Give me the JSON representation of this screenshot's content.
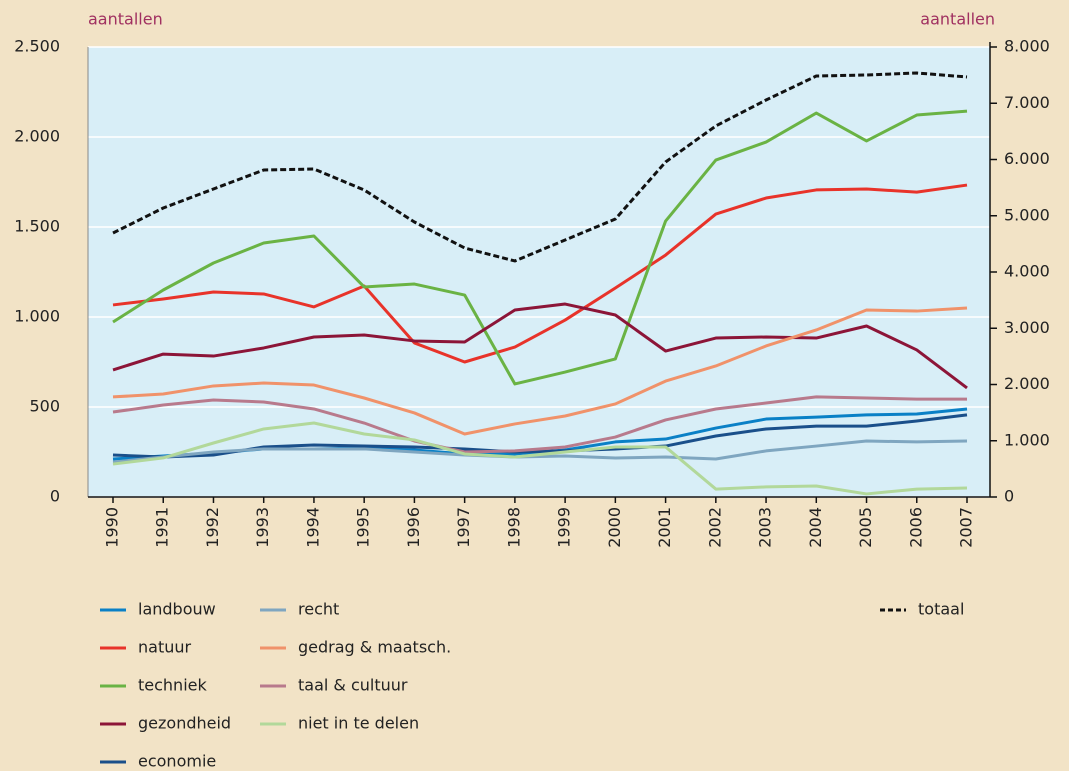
{
  "chart_data": {
    "type": "line",
    "y_label": "aantallen",
    "y2_label": "aantallen",
    "categories": [
      "1990",
      "1991",
      "1992",
      "1993",
      "1994",
      "1995",
      "1996",
      "1997",
      "1998",
      "1999",
      "2000",
      "2001",
      "2002",
      "2003",
      "2004",
      "2005",
      "2006",
      "2007"
    ],
    "ylim": [
      0,
      2500
    ],
    "yticks": [
      {
        "value": 0,
        "label": "0"
      },
      {
        "value": 500,
        "label": "500"
      },
      {
        "value": 1000,
        "label": "1.000"
      },
      {
        "value": 1500,
        "label": "1.500"
      },
      {
        "value": 2000,
        "label": "2.000"
      },
      {
        "value": 2500,
        "label": "2.500"
      }
    ],
    "y2lim": [
      0,
      8000
    ],
    "y2ticks": [
      0,
      {
        "value": 1000,
        "label": "1.000"
      },
      {
        "value": 2000,
        "label": "2.000"
      },
      {
        "value": 3000,
        "label": "3.000"
      },
      {
        "value": 4000,
        "label": "4.000"
      },
      {
        "value": 5000,
        "label": "5.000"
      },
      {
        "value": 6000,
        "label": "6.000"
      },
      {
        "value": 7000,
        "label": "7.000"
      },
      {
        "value": 8000,
        "label": "8.000"
      }
    ],
    "grid": true,
    "series": [
      {
        "name": "landbouw",
        "color": "#0a80c6",
        "values": [
          211,
          228,
          244,
          267,
          267,
          272,
          261,
          239,
          239,
          261,
          306,
          322,
          383,
          433,
          444,
          456,
          461,
          489
        ]
      },
      {
        "name": "natuur",
        "color": "#e8332a",
        "values": [
          1067,
          1100,
          1139,
          1128,
          1056,
          1172,
          856,
          750,
          833,
          983,
          1161,
          1344,
          1572,
          1661,
          1706,
          1711,
          1694,
          1733
        ]
      },
      {
        "name": "techniek",
        "color": "#6ab344",
        "values": [
          972,
          1150,
          1300,
          1411,
          1450,
          1167,
          1183,
          1122,
          628,
          694,
          767,
          1533,
          1872,
          1972,
          2133,
          1978,
          2122,
          2144
        ]
      },
      {
        "name": "gezondheid",
        "color": "#8c1538",
        "values": [
          706,
          794,
          783,
          828,
          889,
          900,
          867,
          861,
          1039,
          1072,
          1011,
          811,
          883,
          889,
          883,
          950,
          817,
          606
        ]
      },
      {
        "name": "economie",
        "color": "#1a4f8a",
        "values": [
          233,
          222,
          233,
          278,
          289,
          283,
          278,
          267,
          250,
          256,
          267,
          283,
          339,
          378,
          394,
          394,
          422,
          456
        ]
      },
      {
        "name": "recht",
        "color": "#7fa6c0",
        "values": [
          194,
          222,
          250,
          267,
          267,
          267,
          250,
          233,
          222,
          228,
          217,
          222,
          211,
          256,
          283,
          311,
          306,
          311
        ]
      },
      {
        "name": "gedrag & maatsch.",
        "color": "#f0926a",
        "values": [
          556,
          572,
          617,
          633,
          622,
          550,
          467,
          350,
          406,
          450,
          517,
          644,
          728,
          839,
          928,
          1039,
          1033,
          1050
        ]
      },
      {
        "name": "taal & cultuur",
        "color": "#b87a8c",
        "values": [
          472,
          511,
          539,
          528,
          489,
          411,
          311,
          250,
          256,
          278,
          333,
          428,
          489,
          522,
          556,
          550,
          544,
          544
        ]
      },
      {
        "name": "niet in te delen",
        "color": "#b2d89a",
        "values": [
          183,
          217,
          300,
          378,
          411,
          350,
          317,
          239,
          222,
          250,
          278,
          278,
          44,
          56,
          61,
          17,
          44,
          50
        ]
      },
      {
        "name": "totaal",
        "color": "#111111",
        "axis": "y2",
        "style": "dashed",
        "values": [
          4693,
          5138,
          5476,
          5813,
          5831,
          5458,
          4889,
          4427,
          4196,
          4569,
          4942,
          5956,
          6596,
          7058,
          7484,
          7502,
          7538,
          7467
        ]
      }
    ]
  }
}
